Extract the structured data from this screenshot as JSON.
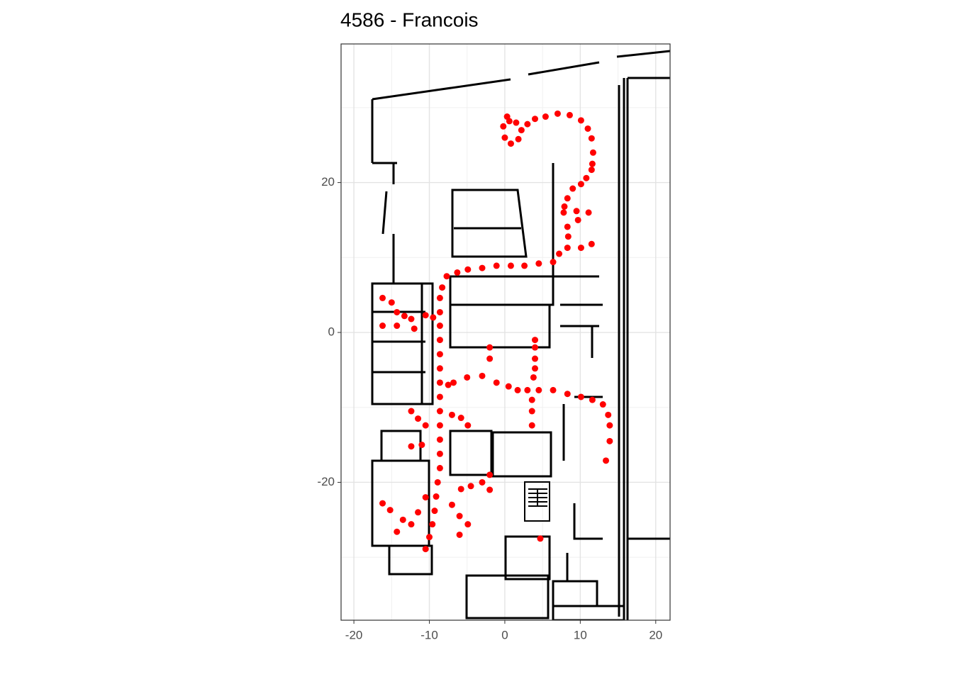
{
  "chart_data": {
    "type": "scatter",
    "title": "4586 - Francois",
    "color": "#ff0000",
    "xlim": [
      -21.7,
      21.9
    ],
    "ylim": [
      -38.4,
      38.5
    ],
    "xticks": [
      -20,
      -10,
      0,
      10,
      20
    ],
    "yticks": [
      -20,
      0,
      20
    ],
    "grid": true,
    "x": [
      0.3,
      -0.2,
      0,
      0.8,
      1.8,
      2.2,
      1.5,
      0.6,
      3,
      4,
      5.4,
      7,
      8.6,
      10.1,
      11,
      11.5,
      11.7,
      11.6,
      11.5,
      10.8,
      10.1,
      9,
      8.3,
      7.9,
      7.8,
      9.5,
      11.1,
      9.7,
      8.3,
      8.4,
      8.3,
      10.1,
      11.5,
      7.2,
      6.4,
      4.5,
      2.6,
      0.8,
      -1.1,
      -3,
      -4.9,
      -6.3,
      -7.7,
      -8.3,
      -8.6,
      -8.6,
      -8.6,
      -8.6,
      -8.6,
      -8.6,
      -8.6,
      -8.6,
      -8.6,
      -8.6,
      -8.6,
      -8.6,
      -8.6,
      -8.9,
      -9.1,
      -9.3,
      -9.6,
      -10,
      -10.5,
      -16.2,
      -15,
      -14.3,
      -13.3,
      -12.4,
      -10.5,
      -9.5,
      -16.2,
      -14.3,
      -12,
      -7.5,
      -6.8,
      -5,
      -3,
      -1.1,
      0.5,
      1.7,
      3,
      4.5,
      6.4,
      8.3,
      10.1,
      11.6,
      13,
      13.7,
      13.9,
      13.9,
      13.4,
      4,
      4,
      4,
      4,
      3.8,
      3.6,
      3.6,
      3.6,
      -2,
      -2,
      -12.4,
      -11.5,
      -10.5,
      -12.4,
      -11,
      -5.8,
      -4.9,
      -7,
      -5.8,
      -4.5,
      -3,
      -2,
      -2,
      -7,
      -6,
      -4.9,
      -6,
      -16.2,
      -15.2,
      -14.3,
      -13.5,
      -12.4,
      -11.5,
      -10.5,
      4.7
    ],
    "y": [
      28.8,
      27.5,
      26,
      25.2,
      25.8,
      27,
      28,
      28.2,
      27.8,
      28.5,
      28.8,
      29.2,
      29,
      28.3,
      27.2,
      25.9,
      24,
      22.5,
      21.7,
      20.6,
      19.8,
      19.2,
      17.9,
      16.8,
      16,
      16.2,
      16,
      15,
      14.1,
      12.8,
      11.3,
      11.3,
      11.8,
      10.5,
      9.4,
      9.2,
      8.9,
      8.9,
      8.9,
      8.6,
      8.4,
      8,
      7.5,
      6,
      4.6,
      2.7,
      0.9,
      -1,
      -2.9,
      -4.8,
      -6.7,
      -8.6,
      -10.5,
      -12.4,
      -14.3,
      -16.2,
      -18.1,
      -20,
      -21.9,
      -23.8,
      -25.6,
      -27.3,
      -28.9,
      4.6,
      4,
      2.7,
      2.2,
      1.8,
      2.3,
      2,
      0.9,
      0.9,
      0.5,
      -7,
      -6.7,
      -6,
      -5.8,
      -6.7,
      -7.2,
      -7.7,
      -7.7,
      -7.7,
      -7.7,
      -8.2,
      -8.6,
      -9,
      -9.6,
      -11,
      -12.4,
      -14.5,
      -17.1,
      -1,
      -2,
      -3.5,
      -4.8,
      -6,
      -9,
      -10.5,
      -12.4,
      -2,
      -3.5,
      -10.5,
      -11.5,
      -12.4,
      -15.2,
      -15,
      -11.4,
      -12.4,
      -11,
      -20.9,
      -20.5,
      -20,
      -19,
      -21,
      -23,
      -24.5,
      -25.6,
      -27,
      -22.8,
      -23.7,
      -26.6,
      -25,
      -25.6,
      -24,
      -22,
      -27.5
    ]
  }
}
